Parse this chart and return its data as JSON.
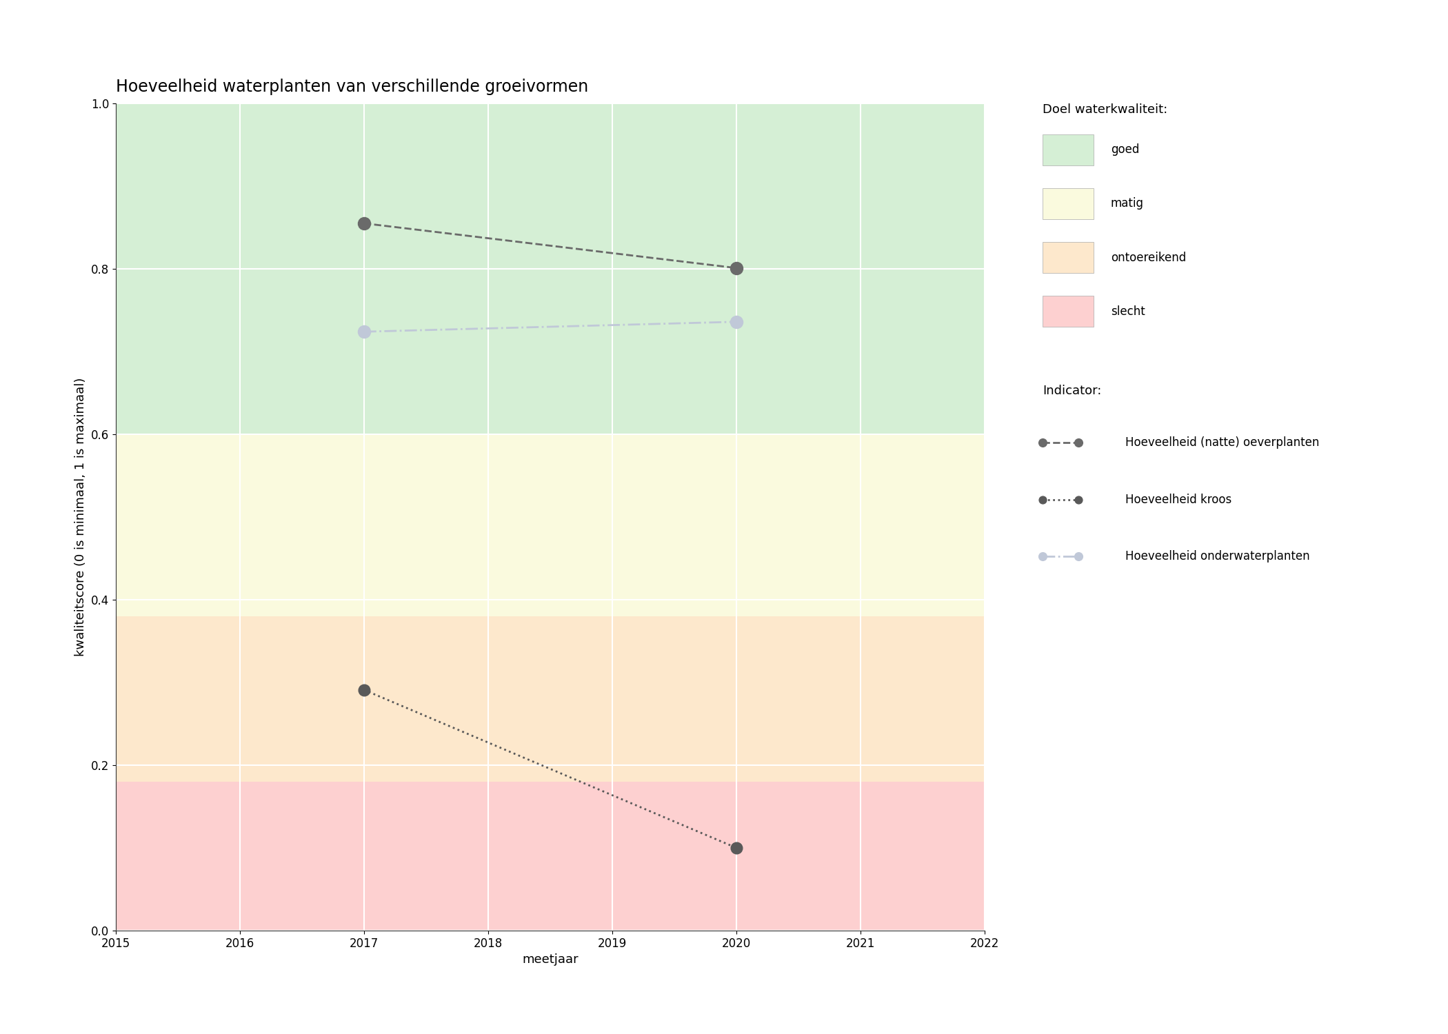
{
  "title": "Hoeveelheid waterplanten van verschillende groeivormen",
  "xlabel": "meetjaar",
  "ylabel": "kwaliteitscore (0 is minimaal, 1 is maximaal)",
  "xlim": [
    2015,
    2022
  ],
  "ylim": [
    0.0,
    1.0
  ],
  "xticks": [
    2015,
    2016,
    2017,
    2018,
    2019,
    2020,
    2021,
    2022
  ],
  "yticks": [
    0.0,
    0.2,
    0.4,
    0.6,
    0.8,
    1.0
  ],
  "background_color": "#ffffff",
  "bg_bands": [
    {
      "ymin": 0.6,
      "ymax": 1.0,
      "color": "#d5efd5",
      "label": "goed"
    },
    {
      "ymin": 0.38,
      "ymax": 0.6,
      "color": "#fafade",
      "label": "matig"
    },
    {
      "ymin": 0.18,
      "ymax": 0.38,
      "color": "#fde8cc",
      "label": "ontoereikend"
    },
    {
      "ymin": 0.0,
      "ymax": 0.18,
      "color": "#fdd0d0",
      "label": "slecht"
    }
  ],
  "series": [
    {
      "name": "Hoeveelheid (natte) oeverplanten",
      "x": [
        2017,
        2020
      ],
      "y": [
        0.855,
        0.801
      ],
      "color": "#6a6a6a",
      "linestyle": "--",
      "linewidth": 2.0,
      "markersize": 13,
      "alpha": 1.0
    },
    {
      "name": "Hoeveelheid kroos",
      "x": [
        2017,
        2020
      ],
      "y": [
        0.291,
        0.1
      ],
      "color": "#595959",
      "linestyle": ":",
      "linewidth": 2.0,
      "markersize": 12,
      "alpha": 1.0
    },
    {
      "name": "Hoeveelheid onderwaterplanten",
      "x": [
        2017,
        2020
      ],
      "y": [
        0.724,
        0.736
      ],
      "color": "#c0c8d8",
      "linestyle": "-.",
      "linewidth": 2.0,
      "markersize": 13,
      "alpha": 1.0
    }
  ],
  "legend_title_doel": "Doel waterkwaliteit:",
  "legend_title_indicator": "Indicator:",
  "doel_labels": [
    "goed",
    "matig",
    "ontoereikend",
    "slecht"
  ],
  "doel_colors": [
    "#d5efd5",
    "#fafade",
    "#fde8cc",
    "#fdd0d0"
  ],
  "grid_color": "#ffffff",
  "title_fontsize": 17,
  "axis_label_fontsize": 13,
  "tick_fontsize": 12,
  "legend_fontsize": 12
}
